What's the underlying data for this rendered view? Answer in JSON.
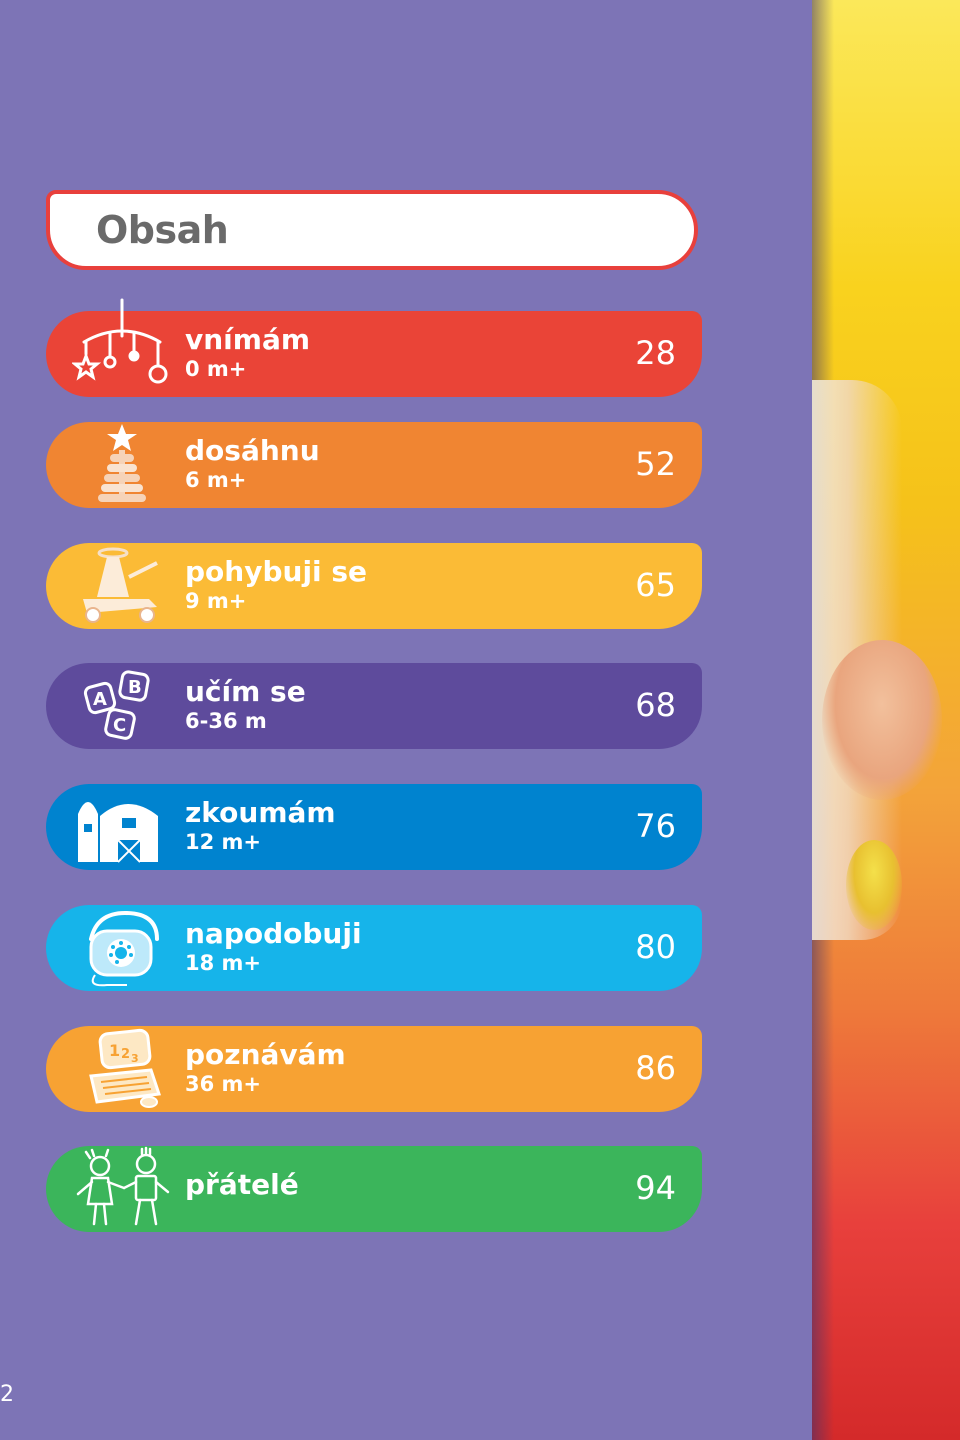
{
  "title": "Obsah",
  "colors": {
    "background": "#7d74b6",
    "title_border": "#e8403c"
  },
  "sections": [
    {
      "name": "vnímám",
      "age": "0 m+",
      "page": "28",
      "color": "#ea4437",
      "icon": "mobile-icon"
    },
    {
      "name": "dosáhnu",
      "age": "6 m+",
      "page": "52",
      "color": "#f08532",
      "icon": "stacking-rings-icon"
    },
    {
      "name": "pohybuji se",
      "age": "9 m+",
      "page": "65",
      "color": "#fbbb36",
      "icon": "walker-toy-icon"
    },
    {
      "name": "učím se",
      "age": "6-36 m",
      "page": "68",
      "color": "#5e4b9c",
      "icon": "abc-blocks-icon"
    },
    {
      "name": "zkoumám",
      "age": "12 m+",
      "page": "76",
      "color": "#0083cf",
      "icon": "barn-icon"
    },
    {
      "name": "napodobuji",
      "age": "18 m+",
      "page": "80",
      "color": "#16b4ea",
      "icon": "toy-phone-icon"
    },
    {
      "name": "poznávám",
      "age": "36 m+",
      "page": "86",
      "color": "#f7a233",
      "icon": "toy-laptop-icon"
    },
    {
      "name": "přátelé",
      "age": "",
      "page": "94",
      "color": "#3bb55b",
      "icon": "friends-icon"
    }
  ],
  "page_number": "2"
}
